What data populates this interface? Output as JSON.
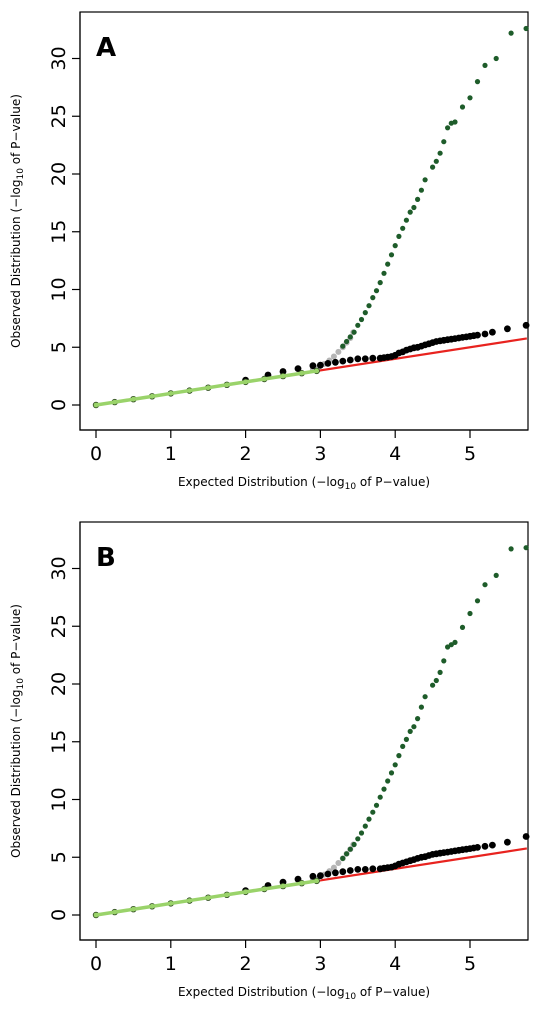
{
  "chart_data": [
    {
      "type": "scatter",
      "panel_label": "A",
      "xlabel": {
        "prefix": "Expected Distribution (−log",
        "sub": "10",
        "suffix": " of P−value)"
      },
      "ylabel": {
        "prefix": "Observed Distribution (−log",
        "sub": "10",
        "suffix": " of P−value)"
      },
      "xlim": [
        0,
        5.8
      ],
      "ylim": [
        0,
        33
      ],
      "xticks": [
        "0",
        "1",
        "2",
        "3",
        "4",
        "5"
      ],
      "yticks": [
        "0",
        "5",
        "10",
        "15",
        "20",
        "25",
        "30"
      ],
      "grid": false,
      "reference_line": {
        "x": [
          0,
          5.76
        ],
        "y": [
          0,
          5.76
        ],
        "color": "#e8231f"
      },
      "series": [
        {
          "style": "gray",
          "color": "#b5b5b5",
          "x": [
            2.9,
            2.98,
            3.05,
            3.12,
            3.18,
            3.24,
            3.3,
            3.35,
            3.4,
            3.44
          ],
          "y": [
            3.1,
            3.3,
            3.55,
            3.85,
            4.2,
            4.6,
            5.0,
            5.4,
            5.8,
            6.3
          ]
        },
        {
          "style": "black",
          "color": "#000000",
          "x": [
            2.0,
            2.3,
            2.5,
            2.7,
            2.9,
            3.0,
            3.1,
            3.2,
            3.3,
            3.4,
            3.5,
            3.6,
            3.7,
            3.8,
            3.85,
            3.9,
            3.95,
            4.0,
            4.05,
            4.1,
            4.15,
            4.2,
            4.25,
            4.3,
            4.35,
            4.4,
            4.45,
            4.5,
            4.55,
            4.6,
            4.65,
            4.7,
            4.75,
            4.8,
            4.85,
            4.9,
            4.95,
            5.0,
            5.05,
            5.1,
            5.2,
            5.3,
            5.5,
            5.75
          ],
          "y": [
            2.15,
            2.6,
            2.9,
            3.15,
            3.4,
            3.45,
            3.6,
            3.7,
            3.8,
            3.9,
            4.0,
            4.0,
            4.05,
            4.05,
            4.1,
            4.15,
            4.2,
            4.3,
            4.5,
            4.6,
            4.75,
            4.85,
            4.95,
            5.0,
            5.1,
            5.2,
            5.3,
            5.4,
            5.5,
            5.55,
            5.6,
            5.65,
            5.7,
            5.75,
            5.8,
            5.85,
            5.9,
            5.95,
            6.0,
            6.05,
            6.15,
            6.3,
            6.6,
            6.9
          ]
        },
        {
          "style": "green",
          "color": "#1e5c2a",
          "x": [
            3.3,
            3.35,
            3.4,
            3.45,
            3.5,
            3.55,
            3.6,
            3.65,
            3.7,
            3.75,
            3.8,
            3.85,
            3.9,
            3.95,
            4.0,
            4.05,
            4.1,
            4.15,
            4.2,
            4.25,
            4.3,
            4.35,
            4.4,
            4.5,
            4.55,
            4.6,
            4.65,
            4.7,
            4.75,
            4.8,
            4.9,
            5.0,
            5.1,
            5.2,
            5.35,
            5.55,
            5.75
          ],
          "y": [
            5.1,
            5.5,
            5.9,
            6.3,
            6.9,
            7.4,
            8.0,
            8.6,
            9.3,
            9.9,
            10.6,
            11.4,
            12.2,
            13.0,
            13.8,
            14.6,
            15.3,
            16.0,
            16.7,
            17.1,
            17.8,
            18.6,
            19.5,
            20.6,
            21.1,
            21.8,
            22.8,
            24.0,
            24.4,
            24.5,
            25.8,
            26.6,
            28.0,
            29.4,
            30.0,
            32.2,
            32.6
          ]
        },
        {
          "style": "lightgreen",
          "color": "#9ad36a",
          "x": [
            0.0,
            0.25,
            0.5,
            0.75,
            1.0,
            1.25,
            1.5,
            1.75,
            2.0,
            2.25,
            2.5,
            2.75,
            2.95
          ],
          "y": [
            0.0,
            0.25,
            0.5,
            0.75,
            1.0,
            1.25,
            1.5,
            1.75,
            2.0,
            2.25,
            2.5,
            2.75,
            2.95
          ]
        }
      ]
    },
    {
      "type": "scatter",
      "panel_label": "B",
      "xlabel": {
        "prefix": "Expected Distribution (−log",
        "sub": "10",
        "suffix": " of P−value)"
      },
      "ylabel": {
        "prefix": "Observed Distribution (−log",
        "sub": "10",
        "suffix": " of P−value)"
      },
      "xlim": [
        0,
        5.8
      ],
      "ylim": [
        0,
        33
      ],
      "xticks": [
        "0",
        "1",
        "2",
        "3",
        "4",
        "5"
      ],
      "yticks": [
        "0",
        "5",
        "10",
        "15",
        "20",
        "25",
        "30"
      ],
      "grid": false,
      "reference_line": {
        "x": [
          0,
          5.76
        ],
        "y": [
          0,
          5.76
        ],
        "color": "#e8231f"
      },
      "series": [
        {
          "style": "gray",
          "color": "#b5b5b5",
          "x": [
            2.9,
            2.98,
            3.05,
            3.12,
            3.18,
            3.24,
            3.3,
            3.35,
            3.4,
            3.44
          ],
          "y": [
            3.05,
            3.25,
            3.5,
            3.8,
            4.1,
            4.5,
            4.9,
            5.3,
            5.7,
            6.1
          ]
        },
        {
          "style": "black",
          "color": "#000000",
          "x": [
            2.0,
            2.3,
            2.5,
            2.7,
            2.9,
            3.0,
            3.1,
            3.2,
            3.3,
            3.4,
            3.5,
            3.6,
            3.7,
            3.8,
            3.85,
            3.9,
            3.95,
            4.0,
            4.05,
            4.1,
            4.15,
            4.2,
            4.25,
            4.3,
            4.35,
            4.4,
            4.45,
            4.5,
            4.55,
            4.6,
            4.65,
            4.7,
            4.75,
            4.8,
            4.85,
            4.9,
            4.95,
            5.0,
            5.05,
            5.1,
            5.2,
            5.3,
            5.5,
            5.75
          ],
          "y": [
            2.1,
            2.55,
            2.85,
            3.1,
            3.35,
            3.4,
            3.55,
            3.65,
            3.75,
            3.85,
            3.95,
            3.95,
            4.0,
            4.0,
            4.05,
            4.1,
            4.15,
            4.25,
            4.4,
            4.5,
            4.6,
            4.7,
            4.8,
            4.9,
            5.0,
            5.05,
            5.15,
            5.25,
            5.3,
            5.35,
            5.4,
            5.45,
            5.5,
            5.55,
            5.6,
            5.65,
            5.7,
            5.75,
            5.8,
            5.85,
            5.95,
            6.05,
            6.3,
            6.8
          ]
        },
        {
          "style": "green",
          "color": "#1e5c2a",
          "x": [
            3.3,
            3.35,
            3.4,
            3.45,
            3.5,
            3.55,
            3.6,
            3.65,
            3.7,
            3.75,
            3.8,
            3.85,
            3.9,
            3.95,
            4.0,
            4.05,
            4.1,
            4.15,
            4.2,
            4.25,
            4.3,
            4.35,
            4.4,
            4.5,
            4.55,
            4.6,
            4.65,
            4.7,
            4.75,
            4.8,
            4.9,
            5.0,
            5.1,
            5.2,
            5.35,
            5.55,
            5.75
          ],
          "y": [
            4.9,
            5.3,
            5.7,
            6.1,
            6.6,
            7.1,
            7.7,
            8.3,
            8.9,
            9.5,
            10.2,
            10.9,
            11.6,
            12.3,
            13.0,
            13.8,
            14.6,
            15.2,
            15.9,
            16.3,
            17.0,
            18.0,
            18.9,
            19.9,
            20.3,
            21.0,
            22.0,
            23.2,
            23.4,
            23.6,
            24.9,
            26.1,
            27.2,
            28.6,
            29.4,
            31.7,
            31.8
          ]
        },
        {
          "style": "lightgreen",
          "color": "#9ad36a",
          "x": [
            0.0,
            0.25,
            0.5,
            0.75,
            1.0,
            1.25,
            1.5,
            1.75,
            2.0,
            2.25,
            2.5,
            2.75,
            2.95
          ],
          "y": [
            0.0,
            0.25,
            0.5,
            0.75,
            1.0,
            1.25,
            1.5,
            1.75,
            2.0,
            2.25,
            2.5,
            2.75,
            2.95
          ]
        }
      ]
    }
  ]
}
